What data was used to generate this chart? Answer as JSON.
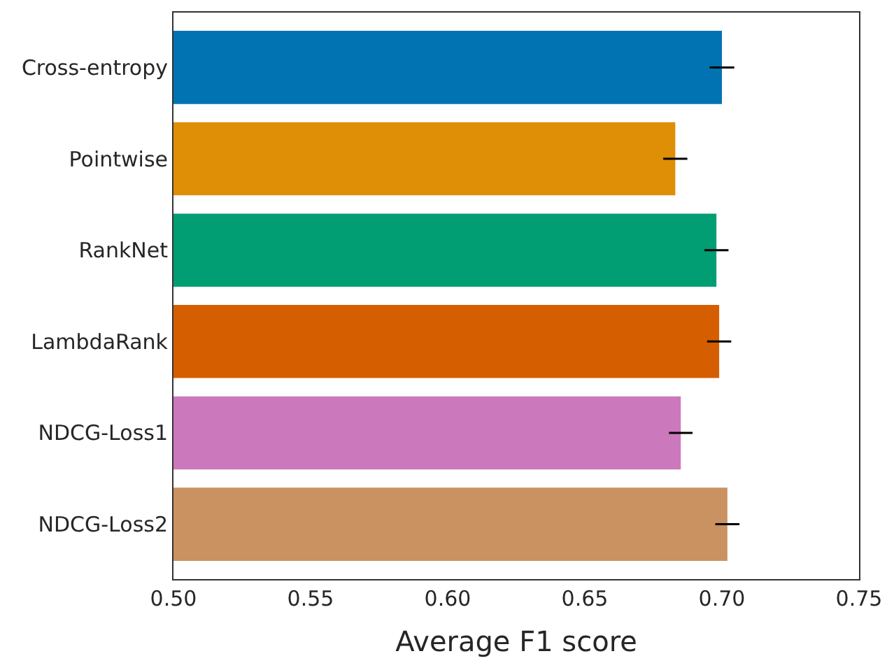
{
  "chart_data": {
    "type": "bar",
    "orientation": "horizontal",
    "xlabel": "Average F1 score",
    "categories": [
      "Cross-entropy",
      "Pointwise",
      "RankNet",
      "LambdaRank",
      "NDCG-Loss1",
      "NDCG-Loss2"
    ],
    "values": [
      0.7,
      0.683,
      0.698,
      0.699,
      0.685,
      0.702
    ],
    "errors": [
      0.0045,
      0.0044,
      0.0044,
      0.0044,
      0.0043,
      0.0044
    ],
    "colors": [
      "#0173b2",
      "#de8f05",
      "#029e73",
      "#d55e00",
      "#cc78bc",
      "#ca9161"
    ],
    "xlim": [
      0.5,
      0.75
    ],
    "xticks": [
      {
        "value": 0.5,
        "label": "0.50"
      },
      0.55,
      {
        "value": 0.6,
        "label": "0.60"
      },
      0.65,
      {
        "value": 0.7,
        "label": "0.70"
      },
      0.75
    ]
  }
}
